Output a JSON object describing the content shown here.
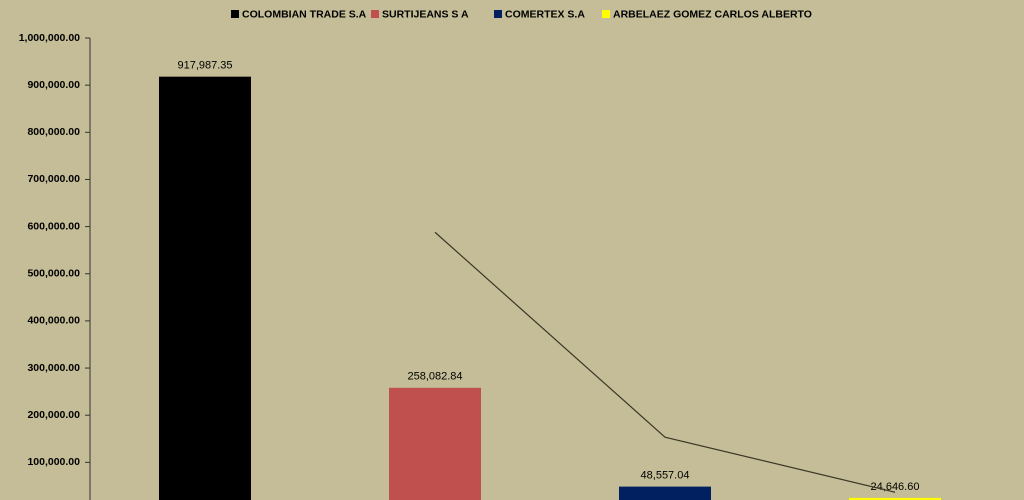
{
  "chart_data": {
    "type": "bar",
    "categories": [
      null,
      null,
      null,
      null
    ],
    "series": [
      {
        "name": "COLOMBIAN TRADE S.A",
        "color": "#000000",
        "values": [
          917987.35,
          null,
          null,
          null
        ],
        "value_labels": [
          "917,987.35",
          null,
          null,
          null
        ]
      },
      {
        "name": "SURTIJEANS S A",
        "color": "#c0504d",
        "values": [
          null,
          258082.84,
          null,
          null
        ],
        "value_labels": [
          null,
          "258,082.84",
          null,
          null
        ]
      },
      {
        "name": "COMERTEX S.A",
        "color": "#002060",
        "values": [
          null,
          null,
          48557.04,
          null
        ],
        "value_labels": [
          null,
          null,
          "48,557.04",
          null
        ]
      },
      {
        "name": "ARBELAEZ GOMEZ CARLOS ALBERTO",
        "color": "#ffff00",
        "values": [
          null,
          null,
          null,
          24646.6
        ],
        "value_labels": [
          null,
          null,
          null,
          "24,646.60"
        ]
      }
    ],
    "trendline": {
      "color": "#3a3826",
      "values": [
        null,
        588035.1,
        153319.94,
        36601.82
      ]
    },
    "ylim": [
      0,
      1000000
    ],
    "yticks": [
      {
        "value": 100000,
        "label": "100,000.00"
      },
      {
        "value": 200000,
        "label": "200,000.00"
      },
      {
        "value": 300000,
        "label": "300,000.00"
      },
      {
        "value": 400000,
        "label": "400,000.00"
      },
      {
        "value": 500000,
        "label": "500,000.00"
      },
      {
        "value": 600000,
        "label": "600,000.00"
      },
      {
        "value": 700000,
        "label": "700,000.00"
      },
      {
        "value": 800000,
        "label": "800,000.00"
      },
      {
        "value": 900000,
        "label": "900,000.00"
      },
      {
        "value": 1000000,
        "label": "1,000,000.00"
      }
    ],
    "grid": false,
    "legend": "top",
    "background": "#c4bd97"
  }
}
